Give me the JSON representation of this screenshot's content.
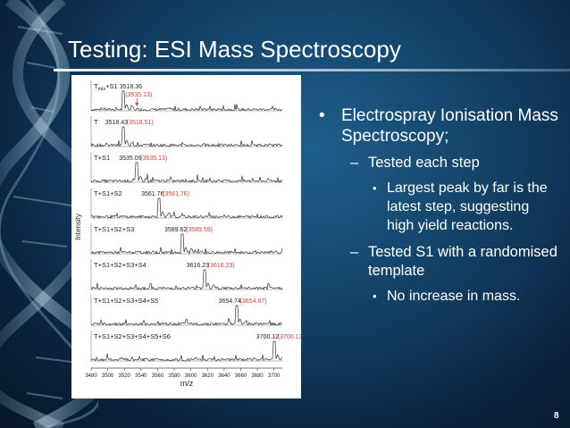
{
  "slide": {
    "title": "Testing: ESI Mass Spectroscopy",
    "slide_number": "8",
    "bullets": {
      "b1": "Electrospray Ionisation Mass Spectroscopy;",
      "b1_s1": "Tested each step",
      "b1_s1_a": "Largest peak by far is the latest step, suggesting high yield reactions.",
      "b1_s2": "Tested S1 with a randomised template",
      "b1_s2_a": "No increase in mass."
    }
  },
  "colors": {
    "background": "#0e3354",
    "text": "#ffffff",
    "trace": "#333333",
    "predicted_label": "#d9413a"
  },
  "chart_data": {
    "type": "line",
    "xlabel": "m/z",
    "ylabel": "Intensity",
    "xlim": [
      3480,
      3710
    ],
    "x_ticks": [
      3480,
      3500,
      3520,
      3540,
      3560,
      3580,
      3600,
      3620,
      3640,
      3660,
      3680,
      3700
    ],
    "panels": [
      {
        "name": "Tmis+S1",
        "label_main": "T",
        "label_sub": "mis",
        "label_suffix": "+S1",
        "peak_mz": 3518.36,
        "observed": "3518.36",
        "predicted": "(3535.13)",
        "arrow_mz": 3535.13
      },
      {
        "name": "T",
        "label_main": "T",
        "label_sub": "",
        "label_suffix": "",
        "peak_mz": 3518.43,
        "observed": "3518.43",
        "predicted": "(3518.51)"
      },
      {
        "name": "T+S1",
        "label_main": "T+S1",
        "label_sub": "",
        "label_suffix": "",
        "peak_mz": 3535.09,
        "observed": "3535.09",
        "predicted": "(3535.13)"
      },
      {
        "name": "T+S1+S2",
        "label_main": "T+S1+S2",
        "label_sub": "",
        "label_suffix": "",
        "peak_mz": 3561.76,
        "observed": "3561.76",
        "predicted": "(3561.76)"
      },
      {
        "name": "T+S1+S2+S3",
        "label_main": "T+S1+S2+S3",
        "label_sub": "",
        "label_suffix": "",
        "peak_mz": 3589.62,
        "observed": "3589.62",
        "predicted": "(3589.59)"
      },
      {
        "name": "T+S1+S2+S3+S4",
        "label_main": "T+S1+S2+S3+S4",
        "label_sub": "",
        "label_suffix": "",
        "peak_mz": 3616.23,
        "observed": "3616.23",
        "predicted": "(3616.23)"
      },
      {
        "name": "T+S1+S2+S3+S4+S5",
        "label_main": "T+S1+S2+S3+S4+S5",
        "label_sub": "",
        "label_suffix": "",
        "peak_mz": 3654.74,
        "observed": "3654.74",
        "predicted": "(3654.87)"
      },
      {
        "name": "T+S1+S2+S3+S4+S5+S6",
        "label_main": "T+S1+S2+S3+S4+S5+S6",
        "label_sub": "",
        "label_suffix": "",
        "peak_mz": 3700.12,
        "observed": "3700.12",
        "predicted": "(3700.13)"
      }
    ]
  }
}
